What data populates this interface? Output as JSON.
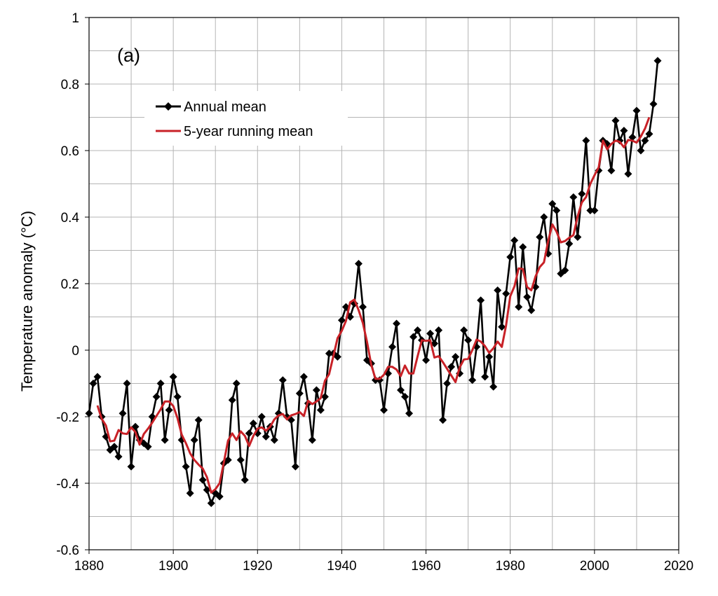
{
  "chart_data": {
    "type": "line",
    "panel_label": "(a)",
    "title": "",
    "xlabel": "",
    "ylabel": "Temperature anomaly (°C)",
    "xlim": [
      1880,
      2020
    ],
    "ylim": [
      -0.6,
      1.0
    ],
    "x_ticks": [
      1880,
      1900,
      1920,
      1940,
      1960,
      1980,
      2000,
      2020
    ],
    "y_ticks": [
      -0.6,
      -0.4,
      -0.2,
      0,
      0.2,
      0.4,
      0.6,
      0.8,
      1
    ],
    "x_tick_labels": [
      "1880",
      "1900",
      "1920",
      "1940",
      "1960",
      "1980",
      "2000",
      "2020"
    ],
    "y_tick_labels": [
      "-0.6",
      "-0.4",
      "-0.2",
      "0",
      "0.2",
      "0.4",
      "0.6",
      "0.8",
      "1"
    ],
    "grid": true,
    "legend_position": "top-left",
    "series": [
      {
        "name": "Annual mean",
        "color": "#000000",
        "marker": "diamond",
        "x": [
          1880,
          1881,
          1882,
          1883,
          1884,
          1885,
          1886,
          1887,
          1888,
          1889,
          1890,
          1891,
          1892,
          1893,
          1894,
          1895,
          1896,
          1897,
          1898,
          1899,
          1900,
          1901,
          1902,
          1903,
          1904,
          1905,
          1906,
          1907,
          1908,
          1909,
          1910,
          1911,
          1912,
          1913,
          1914,
          1915,
          1916,
          1917,
          1918,
          1919,
          1920,
          1921,
          1922,
          1923,
          1924,
          1925,
          1926,
          1927,
          1928,
          1929,
          1930,
          1931,
          1932,
          1933,
          1934,
          1935,
          1936,
          1937,
          1938,
          1939,
          1940,
          1941,
          1942,
          1943,
          1944,
          1945,
          1946,
          1947,
          1948,
          1949,
          1950,
          1951,
          1952,
          1953,
          1954,
          1955,
          1956,
          1957,
          1958,
          1959,
          1960,
          1961,
          1962,
          1963,
          1964,
          1965,
          1966,
          1967,
          1968,
          1969,
          1970,
          1971,
          1972,
          1973,
          1974,
          1975,
          1976,
          1977,
          1978,
          1979,
          1980,
          1981,
          1982,
          1983,
          1984,
          1985,
          1986,
          1987,
          1988,
          1989,
          1990,
          1991,
          1992,
          1993,
          1994,
          1995,
          1996,
          1997,
          1998,
          1999,
          2000,
          2001,
          2002,
          2003,
          2004,
          2005,
          2006,
          2007,
          2008,
          2009,
          2010,
          2011,
          2012,
          2013,
          2014,
          2015
        ],
        "values": [
          -0.19,
          -0.1,
          -0.08,
          -0.2,
          -0.26,
          -0.3,
          -0.29,
          -0.32,
          -0.19,
          -0.1,
          -0.35,
          -0.23,
          -0.27,
          -0.28,
          -0.29,
          -0.2,
          -0.14,
          -0.1,
          -0.27,
          -0.18,
          -0.08,
          -0.14,
          -0.27,
          -0.35,
          -0.43,
          -0.27,
          -0.21,
          -0.39,
          -0.42,
          -0.46,
          -0.43,
          -0.44,
          -0.34,
          -0.33,
          -0.15,
          -0.1,
          -0.33,
          -0.39,
          -0.25,
          -0.22,
          -0.25,
          -0.2,
          -0.26,
          -0.23,
          -0.27,
          -0.19,
          -0.09,
          -0.2,
          -0.21,
          -0.35,
          -0.13,
          -0.08,
          -0.16,
          -0.27,
          -0.12,
          -0.18,
          -0.14,
          -0.01,
          -0.01,
          -0.02,
          0.09,
          0.13,
          0.1,
          0.14,
          0.26,
          0.13,
          -0.03,
          -0.04,
          -0.09,
          -0.09,
          -0.18,
          -0.07,
          0.01,
          0.08,
          -0.12,
          -0.14,
          -0.19,
          0.04,
          0.06,
          0.03,
          -0.03,
          0.05,
          0.02,
          0.06,
          -0.21,
          -0.1,
          -0.05,
          -0.02,
          -0.07,
          0.06,
          0.03,
          -0.09,
          0.01,
          0.15,
          -0.08,
          -0.02,
          -0.11,
          0.18,
          0.07,
          0.17,
          0.28,
          0.33,
          0.13,
          0.31,
          0.16,
          0.12,
          0.19,
          0.34,
          0.4,
          0.29,
          0.44,
          0.42,
          0.23,
          0.24,
          0.32,
          0.46,
          0.34,
          0.47,
          0.63,
          0.42,
          0.42,
          0.54,
          0.63,
          0.62,
          0.54,
          0.69,
          0.63,
          0.66,
          0.53,
          0.64,
          0.72,
          0.6,
          0.63,
          0.65,
          0.74,
          0.87
        ]
      },
      {
        "name": "5-year running mean",
        "color": "#c82127",
        "marker": "none",
        "x": [
          1882,
          1883,
          1884,
          1885,
          1886,
          1887,
          1888,
          1889,
          1890,
          1891,
          1892,
          1893,
          1894,
          1895,
          1896,
          1897,
          1898,
          1899,
          1900,
          1901,
          1902,
          1903,
          1904,
          1905,
          1906,
          1907,
          1908,
          1909,
          1910,
          1911,
          1912,
          1913,
          1914,
          1915,
          1916,
          1917,
          1918,
          1919,
          1920,
          1921,
          1922,
          1923,
          1924,
          1925,
          1926,
          1927,
          1928,
          1929,
          1930,
          1931,
          1932,
          1933,
          1934,
          1935,
          1936,
          1937,
          1938,
          1939,
          1940,
          1941,
          1942,
          1943,
          1944,
          1945,
          1946,
          1947,
          1948,
          1949,
          1950,
          1951,
          1952,
          1953,
          1954,
          1955,
          1956,
          1957,
          1958,
          1959,
          1960,
          1961,
          1962,
          1963,
          1964,
          1965,
          1966,
          1967,
          1968,
          1969,
          1970,
          1971,
          1972,
          1973,
          1974,
          1975,
          1976,
          1977,
          1978,
          1979,
          1980,
          1981,
          1982,
          1983,
          1984,
          1985,
          1986,
          1987,
          1988,
          1989,
          1990,
          1991,
          1992,
          1993,
          1994,
          1995,
          1996,
          1997,
          1998,
          1999,
          2000,
          2001,
          2002,
          2003,
          2004,
          2005,
          2006,
          2007,
          2008,
          2009,
          2010,
          2011,
          2012,
          2013
        ],
        "values": [
          -0.166,
          -0.206,
          -0.226,
          -0.274,
          -0.272,
          -0.24,
          -0.25,
          -0.252,
          -0.232,
          -0.246,
          -0.284,
          -0.252,
          -0.236,
          -0.218,
          -0.198,
          -0.178,
          -0.154,
          -0.154,
          -0.168,
          -0.204,
          -0.254,
          -0.28,
          -0.31,
          -0.33,
          -0.344,
          -0.356,
          -0.382,
          -0.428,
          -0.418,
          -0.4,
          -0.338,
          -0.272,
          -0.25,
          -0.27,
          -0.244,
          -0.258,
          -0.288,
          -0.258,
          -0.236,
          -0.232,
          -0.242,
          -0.23,
          -0.208,
          -0.196,
          -0.192,
          -0.208,
          -0.196,
          -0.192,
          -0.186,
          -0.198,
          -0.152,
          -0.162,
          -0.154,
          -0.144,
          -0.092,
          -0.072,
          -0.018,
          0.036,
          0.058,
          0.088,
          0.144,
          0.152,
          0.12,
          0.082,
          0.024,
          -0.044,
          -0.086,
          -0.086,
          -0.074,
          -0.05,
          -0.05,
          -0.058,
          -0.078,
          -0.046,
          -0.07,
          -0.07,
          -0.018,
          0.03,
          0.028,
          0.03,
          -0.022,
          -0.018,
          -0.036,
          -0.056,
          -0.076,
          -0.096,
          -0.052,
          -0.028,
          -0.026,
          0.0,
          0.032,
          0.026,
          0.012,
          -0.008,
          0.006,
          0.026,
          0.01,
          0.074,
          0.162,
          0.192,
          0.246,
          0.244,
          0.19,
          0.18,
          0.222,
          0.25,
          0.264,
          0.328,
          0.378,
          0.356,
          0.324,
          0.328,
          0.338,
          0.346,
          0.402,
          0.444,
          0.46,
          0.5,
          0.526,
          0.55,
          0.63,
          0.604,
          0.62,
          0.63,
          0.626,
          0.61,
          0.632,
          0.63,
          0.624,
          0.642,
          0.666,
          0.7
        ]
      }
    ]
  }
}
